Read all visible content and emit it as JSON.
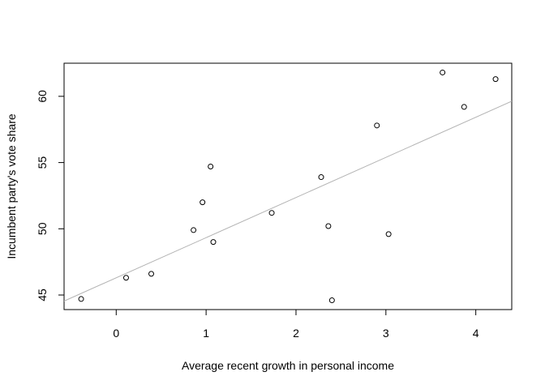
{
  "chart_data": {
    "type": "scatter",
    "title": "",
    "xlabel": "Average recent growth in personal income",
    "ylabel": "Incumbent party's vote share",
    "xlim": [
      -0.58,
      4.4
    ],
    "ylim": [
      43.9,
      62.5
    ],
    "xticks": [
      0,
      1,
      2,
      3,
      4
    ],
    "yticks": [
      45,
      50,
      55,
      60
    ],
    "xtick_labels": [
      "0",
      "1",
      "2",
      "3",
      "4"
    ],
    "ytick_labels": [
      "45",
      "50",
      "55",
      "60"
    ],
    "grid": false,
    "legend": "none",
    "points": [
      {
        "x": -0.39,
        "y": 44.7
      },
      {
        "x": 0.11,
        "y": 46.3
      },
      {
        "x": 0.39,
        "y": 46.6
      },
      {
        "x": 0.86,
        "y": 49.9
      },
      {
        "x": 0.96,
        "y": 52.0
      },
      {
        "x": 1.05,
        "y": 54.7
      },
      {
        "x": 1.08,
        "y": 49.0
      },
      {
        "x": 1.73,
        "y": 51.2
      },
      {
        "x": 2.28,
        "y": 53.9
      },
      {
        "x": 2.36,
        "y": 50.2
      },
      {
        "x": 2.4,
        "y": 44.6
      },
      {
        "x": 2.9,
        "y": 57.8
      },
      {
        "x": 3.03,
        "y": 49.6
      },
      {
        "x": 3.63,
        "y": 61.8
      },
      {
        "x": 3.87,
        "y": 59.2
      },
      {
        "x": 4.22,
        "y": 61.3
      }
    ],
    "fit_line": {
      "intercept": 46.3,
      "slope": 3.03,
      "color": "#b3b3b3"
    },
    "point_color": "#000000"
  }
}
